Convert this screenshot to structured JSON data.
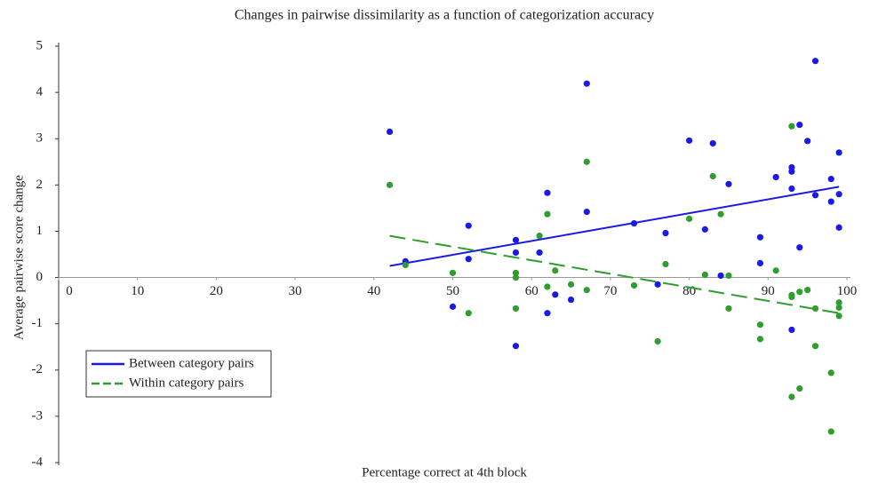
{
  "chart_data": {
    "type": "scatter",
    "title": "Changes in pairwise dissimilarity as a function of categorization accuracy",
    "x_label": "Percentage correct at 4th block",
    "y_label": "Average pairwise score change",
    "xlim": [
      0,
      100
    ],
    "ylim": [
      -4,
      5
    ],
    "xticks": [
      0,
      10,
      20,
      30,
      40,
      50,
      60,
      70,
      80,
      90,
      100
    ],
    "yticks": [
      -4,
      -3,
      -2,
      -1,
      0,
      1,
      2,
      3,
      4,
      5
    ],
    "legend_position": "lower left",
    "series": [
      {
        "name": "Between category pairs",
        "color": "#1a1ae6",
        "dash": false,
        "x": [
          42,
          44,
          50,
          52,
          52,
          58,
          58,
          58,
          61,
          62,
          62,
          63,
          65,
          67,
          67,
          73,
          76,
          77,
          80,
          82,
          83,
          84,
          85,
          89,
          89,
          91,
          93,
          93,
          93,
          93,
          94,
          94,
          95,
          96,
          96,
          98,
          98,
          99,
          99,
          99
        ],
        "y": [
          3.15,
          0.35,
          -0.63,
          1.12,
          0.4,
          0.81,
          0.54,
          -1.48,
          0.54,
          1.83,
          -0.77,
          -0.37,
          -0.48,
          4.19,
          1.42,
          1.17,
          -0.15,
          0.96,
          2.96,
          1.04,
          2.9,
          0.04,
          2.02,
          0.87,
          0.31,
          2.17,
          2.38,
          2.29,
          1.92,
          -1.13,
          3.3,
          0.65,
          2.95,
          4.68,
          1.78,
          2.13,
          1.64,
          2.7,
          1.8,
          1.08
        ],
        "trend_x": [
          42,
          99
        ],
        "trend_y": [
          0.25,
          1.96
        ]
      },
      {
        "name": "Within category pairs",
        "color": "#2f9e2f",
        "dash": true,
        "x": [
          42,
          44,
          50,
          52,
          58,
          58,
          58,
          61,
          62,
          62,
          63,
          65,
          67,
          67,
          73,
          76,
          77,
          80,
          82,
          83,
          84,
          85,
          85,
          89,
          89,
          91,
          93,
          93,
          93,
          93,
          94,
          94,
          95,
          96,
          96,
          98,
          98,
          99,
          99,
          99
        ],
        "y": [
          2.0,
          0.27,
          0.1,
          -0.77,
          0.1,
          0.0,
          -0.67,
          0.9,
          1.37,
          -0.2,
          0.15,
          -0.15,
          2.5,
          -0.27,
          -0.17,
          -1.38,
          0.29,
          1.27,
          0.06,
          2.19,
          1.37,
          0.04,
          -0.67,
          -1.02,
          -1.33,
          0.15,
          3.27,
          -0.38,
          -0.42,
          -2.58,
          -0.31,
          -2.4,
          -0.27,
          -0.67,
          -1.48,
          -2.06,
          -3.33,
          -0.54,
          -0.65,
          -0.83
        ],
        "trend_x": [
          42,
          99
        ],
        "trend_y": [
          0.9,
          -0.77
        ]
      }
    ]
  }
}
